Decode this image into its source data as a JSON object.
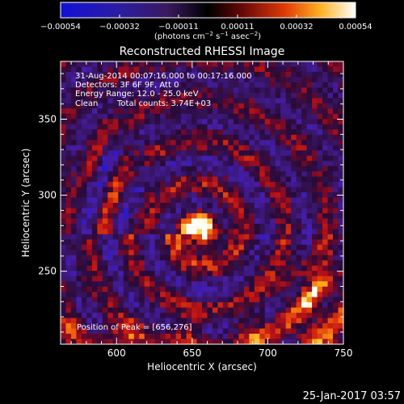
{
  "colorbar": {
    "ticks": [
      "−0.00054",
      "−0.00032",
      "−0.00011",
      "0.00011",
      "0.00032",
      "0.00054"
    ],
    "units_prefix": "(photons cm",
    "units_exp1": "−2",
    "units_mid": " s",
    "units_exp2": "−1",
    "units_mid2": " asec",
    "units_exp3": "−2",
    "units_suffix": ")"
  },
  "plot": {
    "title": "Reconstructed RHESSI Image",
    "xlabel": "Heliocentric X (arcsec)",
    "ylabel": "Heliocentric Y (arcsec)",
    "x_ticks": [
      "600",
      "650",
      "700",
      "750"
    ],
    "y_ticks": [
      "250",
      "300",
      "350"
    ],
    "x_range": [
      563,
      750
    ],
    "y_range": [
      202,
      388
    ]
  },
  "annotations": {
    "time": "31-Aug-2014 00:07:16.000 to 00:17:16.000",
    "detectors": "Detectors: 3F 6F 9F, Att 0",
    "energy": "Energy Range: 12.0 - 25.0 keV",
    "method": "Clean",
    "counts": "Total counts: 3.74E+03",
    "peak": "Position of Peak = [656,276]"
  },
  "peak": {
    "x": 656,
    "y": 276
  },
  "footer": {
    "timestamp": "25-Jan-2017 03:57"
  },
  "colors": {
    "background": "#000000",
    "text": "#ffffff"
  }
}
